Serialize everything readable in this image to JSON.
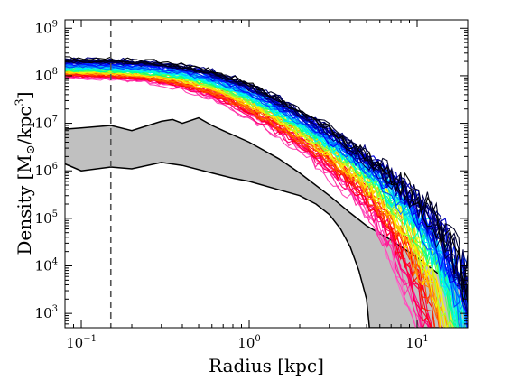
{
  "chart_data": {
    "type": "line",
    "xlabel": "Radius [kpc]",
    "ylabel_parts": [
      "Density [M",
      "⊙",
      "/kpc",
      "3",
      "]"
    ],
    "x_scale": "log",
    "y_scale": "log",
    "xlim": [
      0.08,
      20
    ],
    "ylim": [
      500,
      1500000000.0
    ],
    "x_ticks": [
      {
        "value": 0.1,
        "base": "10",
        "exp": "−1"
      },
      {
        "value": 1,
        "base": "10",
        "exp": "0"
      },
      {
        "value": 10,
        "base": "10",
        "exp": "1"
      }
    ],
    "y_ticks": [
      {
        "value": 1000,
        "base": "10",
        "exp": "3"
      },
      {
        "value": 10000,
        "base": "10",
        "exp": "4"
      },
      {
        "value": 100000,
        "base": "10",
        "exp": "5"
      },
      {
        "value": 1000000,
        "base": "10",
        "exp": "6"
      },
      {
        "value": 10000000,
        "base": "10",
        "exp": "7"
      },
      {
        "value": 100000000,
        "base": "10",
        "exp": "8"
      },
      {
        "value": 1000000000,
        "base": "10",
        "exp": "9"
      }
    ],
    "reference_line": {
      "x": 0.15,
      "style": "dashed",
      "color": "#555555"
    },
    "shaded_band": {
      "color": "#c0c0c0",
      "upper": [
        [
          0.08,
          7500000.0
        ],
        [
          0.1,
          8000000.0
        ],
        [
          0.15,
          9000000.0
        ],
        [
          0.2,
          7000000.0
        ],
        [
          0.25,
          9000000.0
        ],
        [
          0.3,
          11000000.0
        ],
        [
          0.35,
          12000000.0
        ],
        [
          0.4,
          10000000.0
        ],
        [
          0.5,
          13000000.0
        ],
        [
          0.6,
          9000000.0
        ],
        [
          0.7,
          7000000.0
        ],
        [
          1.0,
          4000000.0
        ],
        [
          1.5,
          1800000.0
        ],
        [
          2.0,
          900000.0
        ],
        [
          3.0,
          300000.0
        ],
        [
          4.0,
          130000.0
        ],
        [
          5.0,
          70000.0
        ],
        [
          7.0,
          35000.0
        ],
        [
          10.0,
          15000.0
        ],
        [
          15.0,
          5000.0
        ],
        [
          20.0,
          3000.0
        ]
      ],
      "lower": [
        [
          0.08,
          1400000.0
        ],
        [
          0.1,
          1000000.0
        ],
        [
          0.15,
          1200000.0
        ],
        [
          0.2,
          1100000.0
        ],
        [
          0.3,
          1500000.0
        ],
        [
          0.4,
          1300000.0
        ],
        [
          0.6,
          900000.0
        ],
        [
          0.8,
          700000.0
        ],
        [
          1.0,
          600000.0
        ],
        [
          1.5,
          400000.0
        ],
        [
          2.0,
          300000.0
        ],
        [
          2.5,
          200000.0
        ],
        [
          3.0,
          120000.0
        ],
        [
          3.5,
          60000.0
        ],
        [
          4.0,
          25000.0
        ],
        [
          4.5,
          8000.0
        ],
        [
          5.0,
          2000.0
        ],
        [
          5.2,
          500
        ],
        [
          20.0,
          500
        ]
      ]
    },
    "profile_family": {
      "count": 72,
      "rho0_range": [
        80000000.0,
        220000000.0
      ],
      "rs_range": [
        0.45,
        0.8
      ],
      "rt_range": [
        4,
        12
      ],
      "colormap": [
        "#ff66cc",
        "#ff0080",
        "#ff0000",
        "#ff8000",
        "#ffff00",
        "#00ff80",
        "#00ffff",
        "#0080ff",
        "#0000ff",
        "#000080",
        "#000000"
      ],
      "x_range": [
        0.08,
        20
      ]
    }
  }
}
